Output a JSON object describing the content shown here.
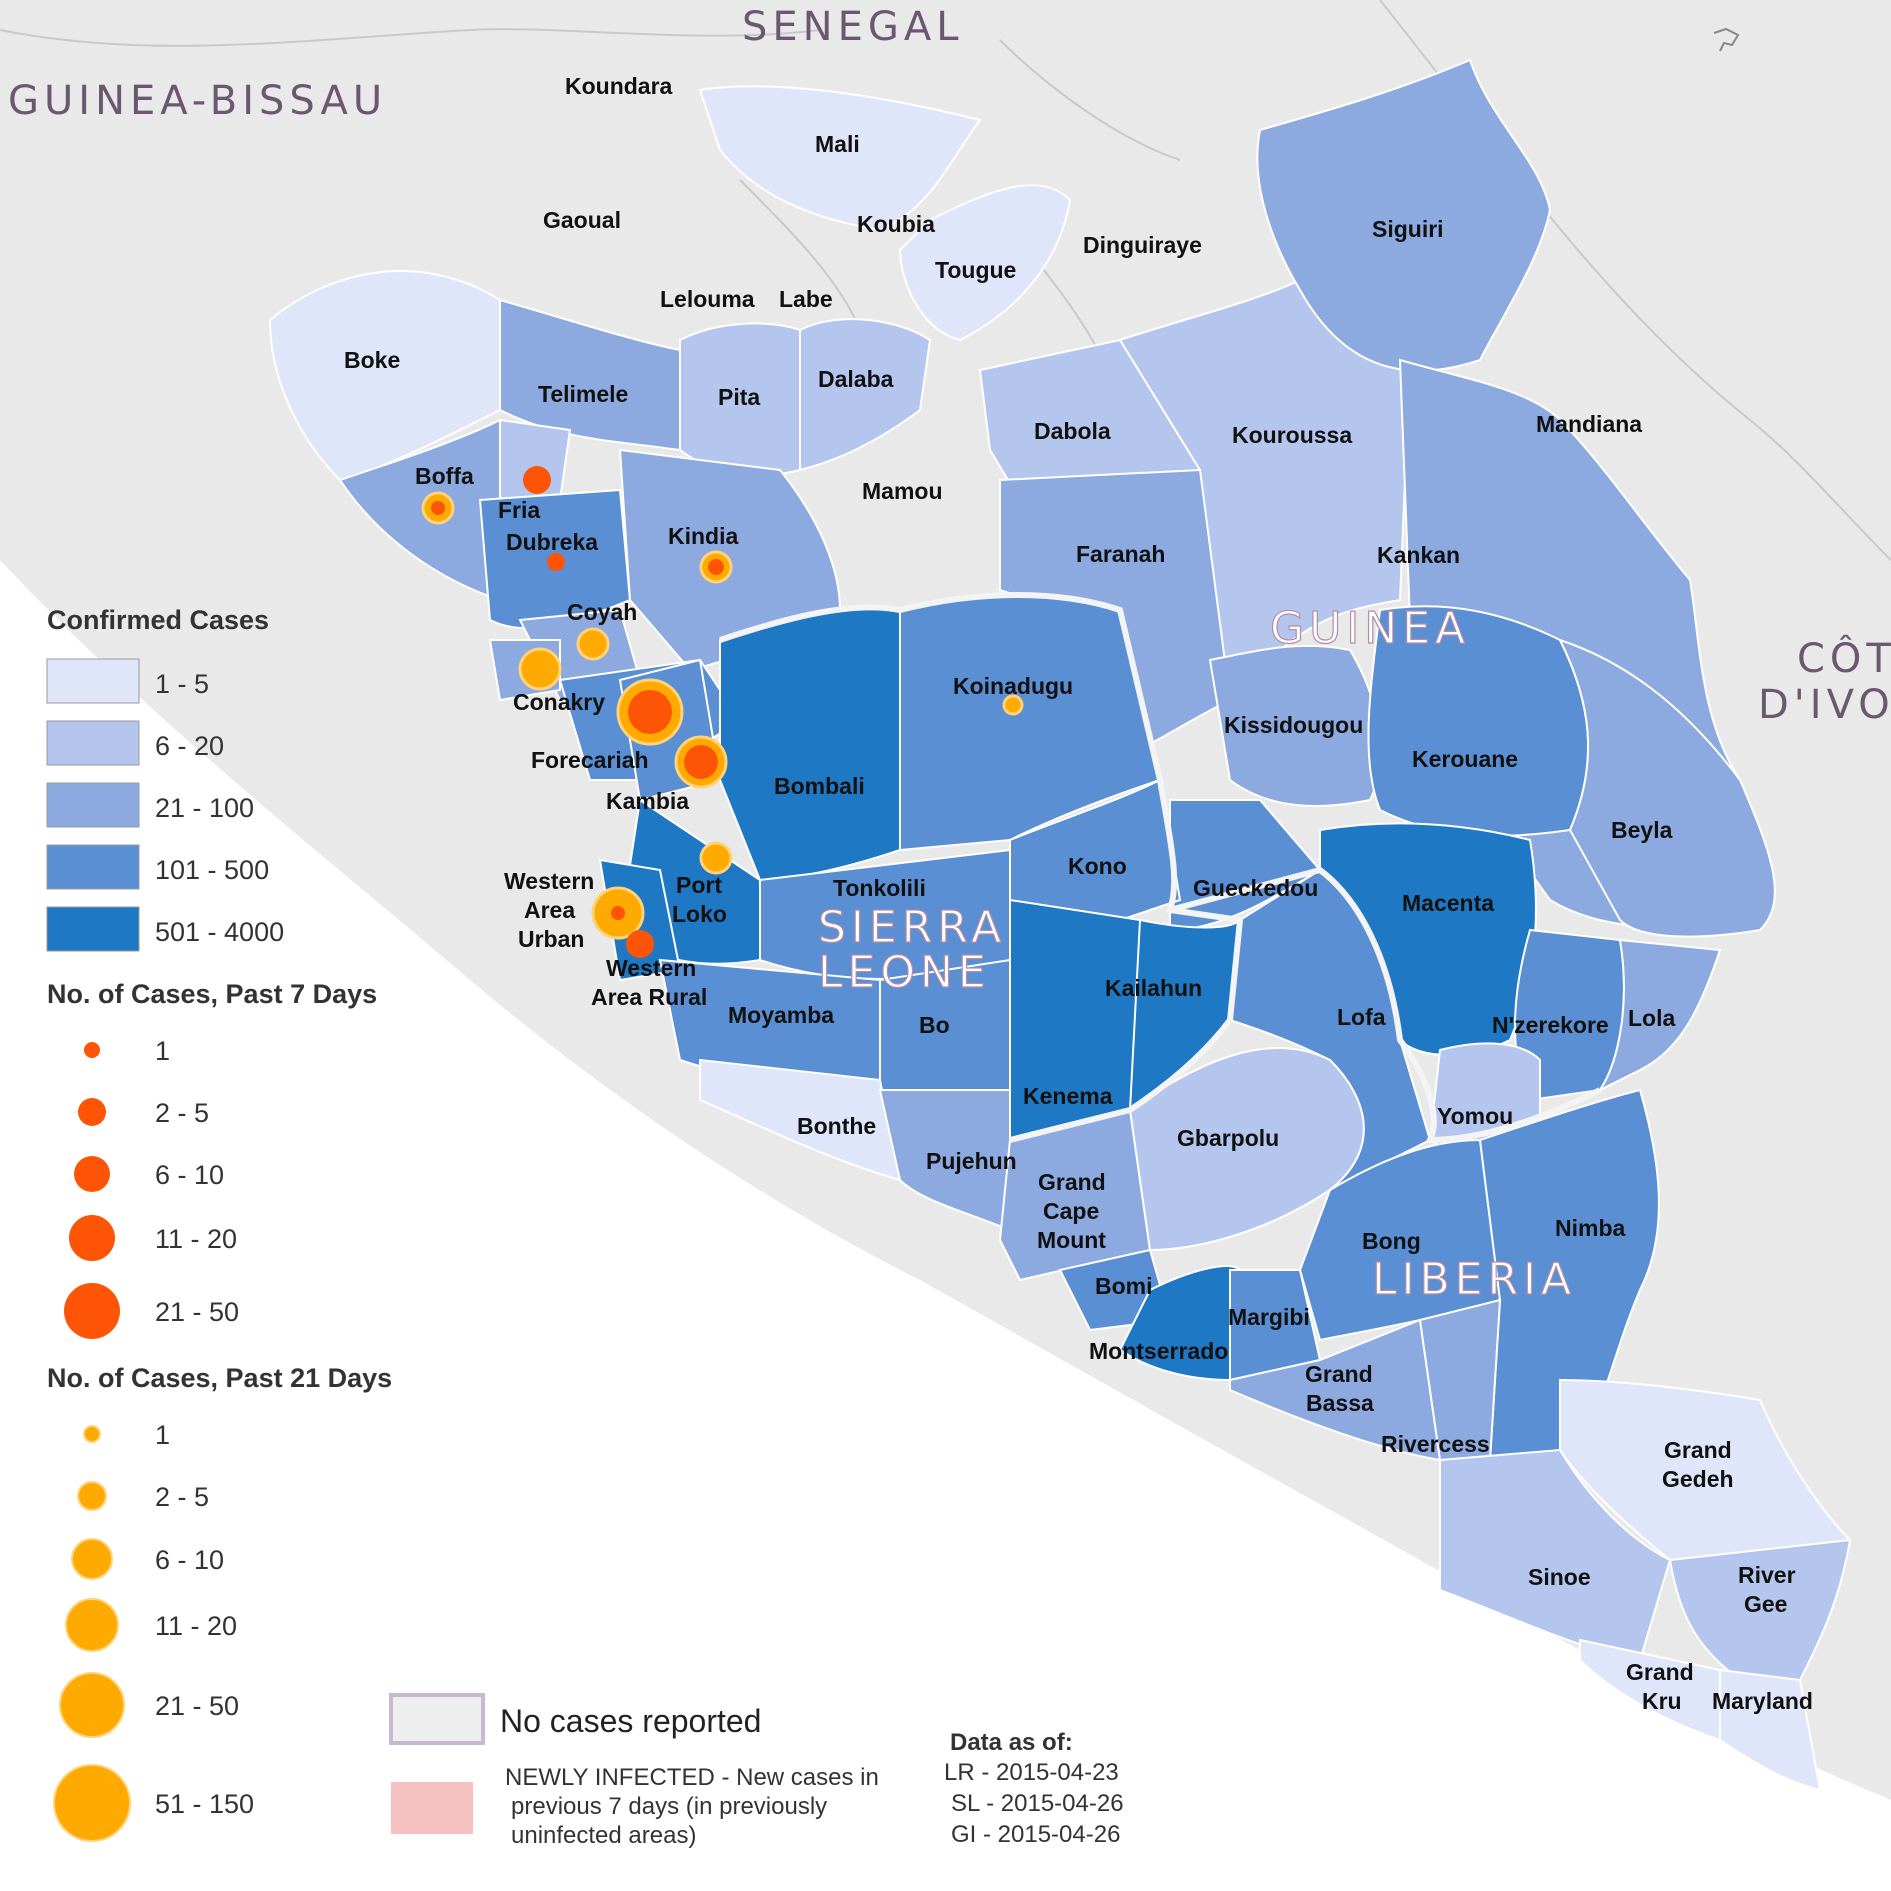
{
  "map": {
    "countries": [
      "SENEGAL",
      "GUINEA-BISSAU",
      "GUINEA",
      "SIERRA",
      "LEONE",
      "LIBERIA",
      "CÔTE",
      "D'IVO"
    ],
    "districts": {
      "outside": [
        "Koundara",
        "Mali",
        "Gaoual",
        "Koubia",
        "Tougue",
        "Dinguiraye",
        "Lelouma",
        "Labe",
        "Mamou",
        "Mandiana"
      ],
      "guinea": [
        "Boke",
        "Telimele",
        "Pita",
        "Dalaba",
        "Boffa",
        "Fria",
        "Dubreka",
        "Kindia",
        "Coyah",
        "Conakry",
        "Forecariah",
        "Dabola",
        "Kouroussa",
        "Siguiri",
        "Faranah",
        "Kankan",
        "Kissidougou",
        "Kerouane",
        "Beyla",
        "Gueckedou",
        "Macenta",
        "N'zerekore",
        "Lola",
        "Yomou"
      ],
      "sierra_leone": [
        "Kambia",
        "Bombali",
        "Koinadugu",
        "Port",
        "Loko",
        "Western",
        "Area",
        "Urban",
        "Western",
        "Area Rural",
        "Tonkolili",
        "Kono",
        "Kailahun",
        "Moyamba",
        "Bo",
        "Kenema",
        "Bonthe",
        "Pujehun"
      ],
      "liberia": [
        "Grand",
        "Cape",
        "Mount",
        "Gbarpolu",
        "Lofa",
        "Bomi",
        "Montserrado",
        "Margibi",
        "Bong",
        "Nimba",
        "Grand",
        "Bassa",
        "Rivercess",
        "Grand",
        "Gedeh",
        "Sinoe",
        "River",
        "Gee",
        "Grand",
        "Kru",
        "Maryland"
      ]
    },
    "colors": {
      "c1_5": "#dfe6fa",
      "c6_20": "#b5c6ee",
      "c21_100": "#8ca9e0",
      "c101_500": "#5b8fd3",
      "c501_4000": "#1f78c4",
      "no_cases": "#efeeee",
      "newly_infected": "#f6bfc0",
      "past7": "#fd5505",
      "past21": "#ffaa00"
    }
  },
  "legend": {
    "confirmed": {
      "title": "Confirmed Cases",
      "items": [
        "1 - 5",
        "6 - 20",
        "21 - 100",
        "101 - 500",
        "501 - 4000"
      ]
    },
    "past7": {
      "title": "No. of Cases, Past 7 Days",
      "items": [
        "1",
        "2 - 5",
        "6 - 10",
        "11 - 20",
        "21 - 50"
      ]
    },
    "past21": {
      "title": "No. of Cases, Past 21 Days",
      "items": [
        "1",
        "2 - 5",
        "6 - 10",
        "11 - 20",
        "21 - 50",
        "51 - 150"
      ]
    },
    "no_cases": "No cases reported",
    "newly_infected": [
      "NEWLY INFECTED - New cases in",
      "previous 7 days (in previously",
      "uninfected areas)"
    ]
  },
  "data_as_of": {
    "title": "Data as of:",
    "lines": [
      "LR - 2015-04-23",
      "SL - 2015-04-26",
      "GI - 2015-04-26"
    ]
  }
}
